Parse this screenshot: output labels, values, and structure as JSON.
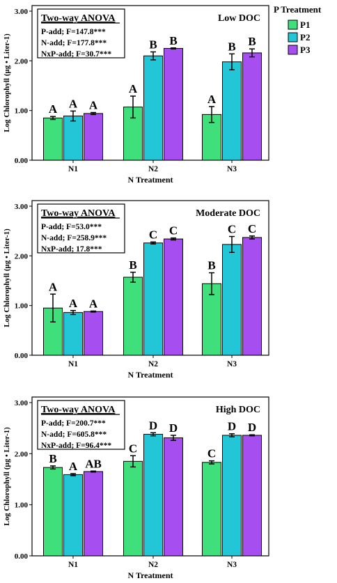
{
  "legend": {
    "title": "P Treatment",
    "items": [
      {
        "label": "P1",
        "color": "#3fe07b"
      },
      {
        "label": "P2",
        "color": "#22c6d6"
      },
      {
        "label": "P3",
        "color": "#a64ef0"
      }
    ]
  },
  "chart_data": [
    {
      "type": "bar",
      "title": "Low DOC",
      "xlabel": "N Treatment",
      "ylabel": "Log Chlorophyll (µg • Liter-1)",
      "ylim": [
        0,
        3
      ],
      "yticks": [
        "0.00",
        "1.00",
        "2.00",
        "3.00"
      ],
      "categories": [
        "N1",
        "N2",
        "N3"
      ],
      "series": [
        {
          "name": "P1",
          "values": [
            0.85,
            1.07,
            0.92
          ],
          "errors": [
            0.03,
            0.22,
            0.16
          ],
          "labels": [
            "A",
            "A",
            "A"
          ]
        },
        {
          "name": "P2",
          "values": [
            0.89,
            2.1,
            1.98
          ],
          "errors": [
            0.1,
            0.08,
            0.16
          ],
          "labels": [
            "A",
            "B",
            "B"
          ]
        },
        {
          "name": "P3",
          "values": [
            0.94,
            2.25,
            2.16
          ],
          "errors": [
            0.02,
            0.01,
            0.08
          ],
          "labels": [
            "A",
            "B",
            "B"
          ]
        }
      ],
      "anova": {
        "heading": "Two-way ANOVA",
        "lines": [
          "P-add; F=147.8***",
          "N-add; F=177.8***",
          "NxP-add; F=30.7***"
        ]
      }
    },
    {
      "type": "bar",
      "title": "Moderate DOC",
      "xlabel": "N Treatment",
      "ylabel": "Log Chlorophyll (µg • Liter-1)",
      "ylim": [
        0,
        3
      ],
      "yticks": [
        "0.00",
        "1.00",
        "2.00",
        "3.00"
      ],
      "categories": [
        "N1",
        "N2",
        "N3"
      ],
      "series": [
        {
          "name": "P1",
          "values": [
            0.95,
            1.57,
            1.44
          ],
          "errors": [
            0.28,
            0.1,
            0.22
          ],
          "labels": [
            "A",
            "B",
            "B"
          ]
        },
        {
          "name": "P2",
          "values": [
            0.86,
            2.26,
            2.23
          ],
          "errors": [
            0.04,
            0.02,
            0.16
          ],
          "labels": [
            "A",
            "C",
            "C"
          ]
        },
        {
          "name": "P3",
          "values": [
            0.88,
            2.34,
            2.37
          ],
          "errors": [
            0.01,
            0.02,
            0.03
          ],
          "labels": [
            "A",
            "C",
            "C"
          ]
        }
      ],
      "anova": {
        "heading": "Two-way ANOVA",
        "lines": [
          "P-add; F=53.0***",
          "N-add; F=258.9***",
          "NxP-add; 17.8***"
        ]
      }
    },
    {
      "type": "bar",
      "title": "High DOC",
      "xlabel": "N Treatment",
      "ylabel": "Log Chlorophyll (µg • Liter-1)",
      "ylim": [
        0,
        3
      ],
      "yticks": [
        "0.00",
        "1.00",
        "2.00",
        "3.00"
      ],
      "categories": [
        "N1",
        "N2",
        "N3"
      ],
      "series": [
        {
          "name": "P1",
          "values": [
            1.73,
            1.85,
            1.83
          ],
          "errors": [
            0.03,
            0.11,
            0.03
          ],
          "labels": [
            "B",
            "C",
            "C"
          ]
        },
        {
          "name": "P2",
          "values": [
            1.59,
            2.38,
            2.36
          ],
          "errors": [
            0.02,
            0.03,
            0.03
          ],
          "labels": [
            "A",
            "D",
            "D"
          ]
        },
        {
          "name": "P3",
          "values": [
            1.65,
            2.31,
            2.36
          ],
          "errors": [
            0.01,
            0.05,
            0.01
          ],
          "labels": [
            "AB",
            "D",
            "D"
          ]
        }
      ],
      "anova": {
        "heading": "Two-way ANOVA",
        "lines": [
          "P-add; F=200.7***",
          "N-add; F=605.8***",
          "NxP-add; F=96.4***"
        ]
      }
    }
  ]
}
